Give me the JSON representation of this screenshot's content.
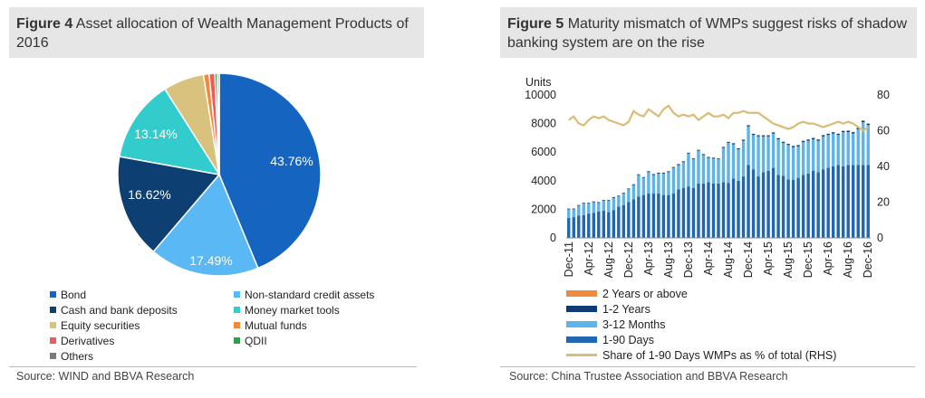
{
  "chart_data": [
    {
      "type": "pie",
      "figure_label": "Figure 4",
      "title": "Asset allocation of Wealth Management Products of 2016",
      "slices": [
        {
          "name": "Bond",
          "value": 43.76,
          "label": "43.76%",
          "color": "#1565c0"
        },
        {
          "name": "Non-standard credit assets",
          "value": 17.49,
          "label": "17.49%",
          "color": "#5ab9f5"
        },
        {
          "name": "Cash and bank deposits",
          "value": 16.62,
          "label": "16.62%",
          "color": "#0d3f73"
        },
        {
          "name": "Money market tools",
          "value": 13.14,
          "label": "13.14%",
          "color": "#33cccc"
        },
        {
          "name": "Equity securities",
          "value": 6.5,
          "label": "",
          "color": "#d9c27e"
        },
        {
          "name": "Mutual funds",
          "value": 0.9,
          "label": "",
          "color": "#f08a3c"
        },
        {
          "name": "Derivatives",
          "value": 0.9,
          "label": "",
          "color": "#f15a5a"
        },
        {
          "name": "QDII",
          "value": 0.4,
          "label": "",
          "color": "#2e9e4f"
        },
        {
          "name": "Others",
          "value": 0.3,
          "label": "",
          "color": "#7a7a7a"
        }
      ],
      "source": "Source: WIND and BBVA Research"
    },
    {
      "type": "bar",
      "stacked": true,
      "figure_label": "Figure 5",
      "title": "Maturity mismatch of WMPs suggest risks of shadow banking system are on the rise",
      "ylabel": "Units",
      "ylim": [
        0,
        10000
      ],
      "yticks": [
        "0",
        "2000",
        "4000",
        "6000",
        "8000",
        "10000"
      ],
      "y2lim": [
        0,
        80
      ],
      "y2ticks": [
        "0",
        "20",
        "40",
        "60",
        "80"
      ],
      "xtick_labels": [
        "Dec-11",
        "Apr-12",
        "Aug-12",
        "Dec-12",
        "Apr-13",
        "Aug-13",
        "Dec-13",
        "Apr-14",
        "Aug-14",
        "Dec-14",
        "Apr-15",
        "Aug-15",
        "Dec-15",
        "Apr-16",
        "Aug-16",
        "Dec-16"
      ],
      "series": [
        {
          "name": "1-90 Days",
          "color": "#1f66b3",
          "values": [
            1400,
            1450,
            1550,
            1600,
            1700,
            1750,
            1850,
            1900,
            1800,
            1950,
            2200,
            2300,
            2500,
            2700,
            2900,
            3000,
            3100,
            3100,
            3100,
            3000,
            3000,
            3100,
            3400,
            3500,
            3600,
            3500,
            3800,
            3800,
            3900,
            3800,
            3800,
            3900,
            3850,
            4150,
            4000,
            4300,
            5100,
            4800,
            4300,
            4600,
            4700,
            4900,
            4400,
            4350,
            4100,
            4050,
            4200,
            4400,
            4500,
            4700,
            4600,
            4800,
            4900,
            5000,
            5100,
            5000,
            5100,
            5100,
            5100,
            5100,
            5100
          ]
        },
        {
          "name": "3-12 Months",
          "color": "#5db4ea",
          "values": [
            600,
            550,
            700,
            800,
            700,
            750,
            600,
            700,
            800,
            850,
            700,
            800,
            900,
            1000,
            1500,
            1200,
            1500,
            1300,
            1400,
            1500,
            1600,
            1800,
            1700,
            1800,
            2300,
            2000,
            2300,
            2000,
            1700,
            1750,
            1700,
            2400,
            2800,
            2400,
            2200,
            2500,
            2700,
            2400,
            2800,
            2500,
            2400,
            2400,
            2500,
            2300,
            2400,
            2300,
            2200,
            2300,
            2300,
            2200,
            2200,
            2300,
            2300,
            2300,
            2100,
            2400,
            2300,
            2200,
            2500,
            3000,
            2800
          ]
        },
        {
          "name": "1-2 Years",
          "color": "#0d3d73",
          "values": [
            50,
            50,
            50,
            50,
            50,
            50,
            50,
            50,
            50,
            50,
            50,
            50,
            50,
            50,
            50,
            50,
            60,
            60,
            60,
            60,
            60,
            60,
            60,
            60,
            60,
            60,
            60,
            60,
            60,
            60,
            60,
            60,
            70,
            70,
            70,
            70,
            80,
            80,
            80,
            80,
            80,
            80,
            80,
            80,
            80,
            80,
            90,
            90,
            90,
            90,
            90,
            90,
            90,
            90,
            90,
            90,
            100,
            100,
            100,
            100,
            100
          ]
        },
        {
          "name": "2 Years or above",
          "color": "#f08a3c",
          "values": [
            10,
            10,
            10,
            10,
            10,
            10,
            10,
            10,
            10,
            10,
            10,
            10,
            10,
            10,
            10,
            10,
            10,
            10,
            10,
            10,
            10,
            10,
            10,
            10,
            10,
            10,
            10,
            10,
            10,
            10,
            10,
            10,
            10,
            10,
            10,
            10,
            10,
            10,
            10,
            10,
            10,
            10,
            10,
            10,
            10,
            10,
            10,
            10,
            10,
            10,
            10,
            10,
            10,
            10,
            10,
            10,
            10,
            10,
            10,
            10,
            10
          ]
        },
        {
          "name": "Share of 1-90 Days WMPs as % of total (RHS)",
          "type": "line",
          "axis": "right",
          "color": "#d9bc76",
          "values": [
            66,
            68,
            64,
            63,
            66,
            68,
            67,
            68,
            66,
            65,
            64,
            63,
            65,
            71,
            69,
            68,
            72,
            70,
            68,
            72,
            74,
            70,
            68,
            69,
            68,
            69,
            66,
            68,
            70,
            68,
            68,
            69,
            67,
            70,
            70,
            71,
            70,
            70,
            70,
            68,
            66,
            64,
            63,
            62,
            61,
            62,
            64,
            65,
            64,
            64,
            63,
            62,
            63,
            64,
            65,
            64,
            65,
            64,
            62,
            60,
            62
          ]
        }
      ],
      "source": "Source: China Trustee Association and BBVA Research"
    }
  ]
}
